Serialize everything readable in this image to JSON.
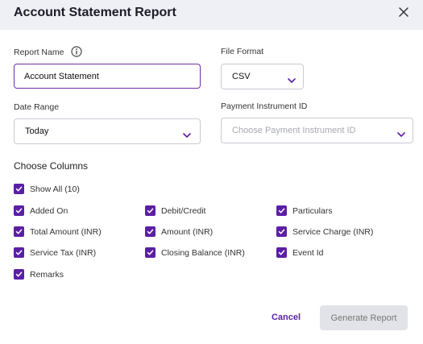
{
  "dialog": {
    "title": "Account Statement Report"
  },
  "form": {
    "report_name": {
      "label": "Report Name",
      "value": "Account Statement"
    },
    "file_format": {
      "label": "File Format",
      "value": "CSV"
    },
    "date_range": {
      "label": "Date Range",
      "value": "Today"
    },
    "payment_instrument": {
      "label": "Payment Instrument ID",
      "placeholder": "Choose Payment Instrument ID"
    }
  },
  "columns": {
    "title": "Choose Columns",
    "show_all": "Show All (10)",
    "items": [
      {
        "label": "Added On",
        "checked": true
      },
      {
        "label": "Debit/Credit",
        "checked": true
      },
      {
        "label": "Particulars",
        "checked": true
      },
      {
        "label": "Total Amount (INR)",
        "checked": true
      },
      {
        "label": "Amount (INR)",
        "checked": true
      },
      {
        "label": "Service Charge (INR)",
        "checked": true
      },
      {
        "label": "Service Tax (INR)",
        "checked": true
      },
      {
        "label": "Closing Balance (INR)",
        "checked": true
      },
      {
        "label": "Event Id",
        "checked": true
      },
      {
        "label": "Remarks",
        "checked": true
      }
    ]
  },
  "actions": {
    "cancel": "Cancel",
    "generate": "Generate Report"
  },
  "colors": {
    "accent": "#5b1fa3",
    "header_bg": "#eef0f5",
    "disabled_bg": "#e2e3e8"
  },
  "icons": {
    "close": "close-icon",
    "info": "info-icon",
    "chevron": "chevron-down-icon",
    "check": "check-icon"
  }
}
